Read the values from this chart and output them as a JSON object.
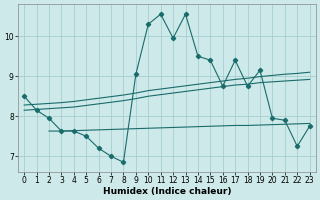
{
  "xlabel": "Humidex (Indice chaleur)",
  "bg_color": "#cde9e9",
  "grid_color": "#a0c8c8",
  "line_color": "#1a6b6b",
  "xlim": [
    -0.5,
    23.5
  ],
  "ylim": [
    6.6,
    10.8
  ],
  "xticks": [
    0,
    1,
    2,
    3,
    4,
    5,
    6,
    7,
    8,
    9,
    10,
    11,
    12,
    13,
    14,
    15,
    16,
    17,
    18,
    19,
    20,
    21,
    22,
    23
  ],
  "yticks": [
    7,
    8,
    9,
    10
  ],
  "line1_x": [
    0,
    1,
    2,
    3,
    4,
    5,
    6,
    7,
    8,
    9,
    10,
    11,
    12,
    13,
    14,
    15,
    16,
    17,
    18,
    19,
    20,
    21,
    22,
    23
  ],
  "line1_y": [
    8.5,
    8.15,
    7.95,
    7.63,
    7.63,
    7.5,
    7.2,
    7.0,
    6.85,
    9.05,
    10.3,
    10.55,
    9.95,
    10.55,
    9.5,
    9.4,
    8.75,
    9.4,
    8.75,
    9.15,
    7.95,
    7.9,
    7.25,
    7.75
  ],
  "line2_x": [
    0,
    1,
    2,
    3,
    4,
    5,
    6,
    7,
    8,
    9,
    10,
    11,
    12,
    13,
    14,
    15,
    16,
    17,
    18,
    19,
    20,
    21,
    22,
    23
  ],
  "line2_y": [
    8.15,
    8.17,
    8.19,
    8.21,
    8.23,
    8.27,
    8.31,
    8.35,
    8.39,
    8.44,
    8.5,
    8.54,
    8.58,
    8.62,
    8.66,
    8.7,
    8.74,
    8.78,
    8.8,
    8.84,
    8.86,
    8.88,
    8.9,
    8.92
  ],
  "line3_x": [
    0,
    1,
    2,
    3,
    4,
    5,
    6,
    7,
    8,
    9,
    10,
    11,
    12,
    13,
    14,
    15,
    16,
    17,
    18,
    19,
    20,
    21,
    22,
    23
  ],
  "line3_y": [
    8.28,
    8.3,
    8.32,
    8.34,
    8.37,
    8.41,
    8.45,
    8.49,
    8.53,
    8.58,
    8.64,
    8.68,
    8.72,
    8.76,
    8.8,
    8.84,
    8.88,
    8.92,
    8.95,
    8.99,
    9.02,
    9.05,
    9.07,
    9.1
  ],
  "line4_x": [
    2,
    3,
    4,
    5,
    6,
    7,
    8,
    9,
    10,
    11,
    12,
    13,
    14,
    15,
    16,
    17,
    18,
    19,
    20,
    21,
    22,
    23
  ],
  "line4_y": [
    7.63,
    7.63,
    7.64,
    7.65,
    7.66,
    7.67,
    7.68,
    7.69,
    7.7,
    7.71,
    7.72,
    7.73,
    7.74,
    7.75,
    7.76,
    7.77,
    7.77,
    7.78,
    7.79,
    7.8,
    7.81,
    7.82
  ]
}
